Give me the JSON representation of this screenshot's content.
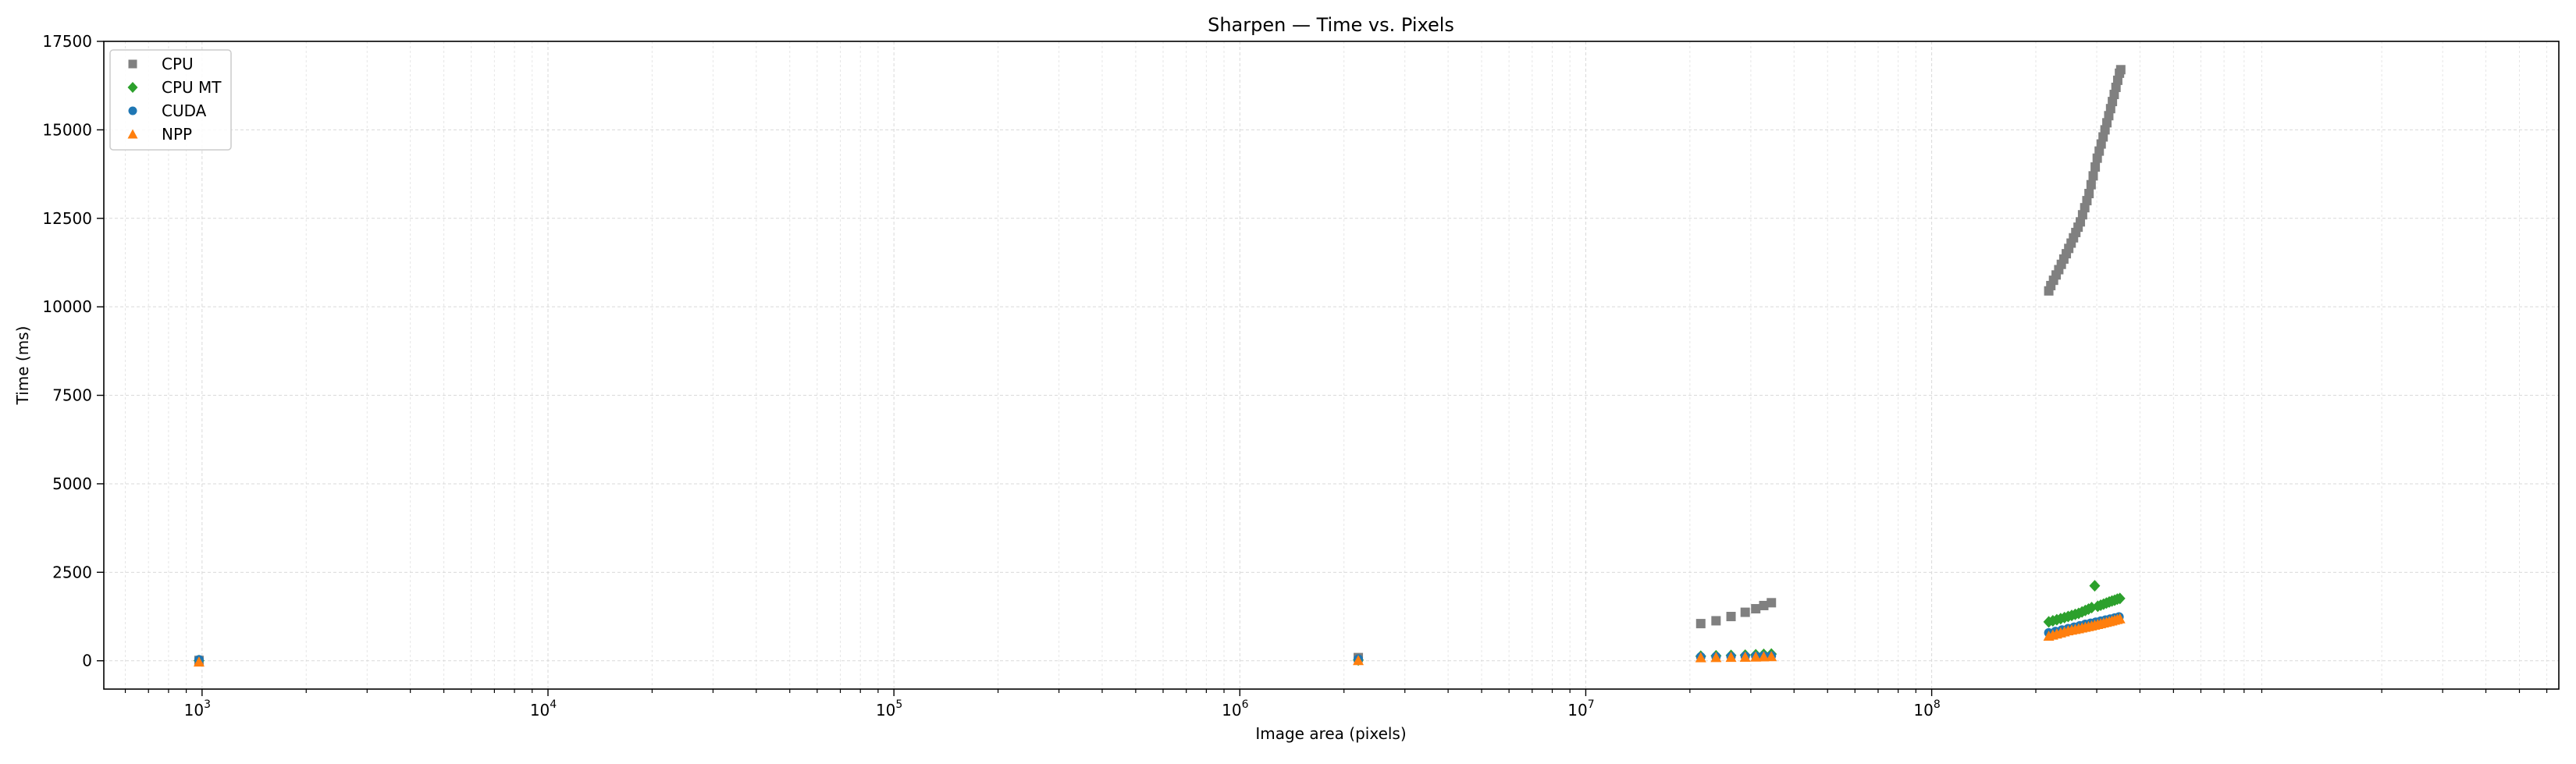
{
  "colors": {
    "CPU": "#808080",
    "CPU MT": "#2ca02c",
    "CUDA": "#1f77b4",
    "NPP": "#ff7f0e"
  },
  "chart_data": {
    "type": "scatter",
    "title": "Sharpen — Time vs. Pixels",
    "xlabel": "Image area (pixels)",
    "ylabel": "Time (ms)",
    "xscale": "log",
    "xlim": [
      520,
      6500000000
    ],
    "ylim": [
      -800,
      17500
    ],
    "grid": true,
    "legend_position": "top-left",
    "x_tick_labels": [
      {
        "base": "10",
        "exp": "3",
        "value": 1000
      },
      {
        "base": "10",
        "exp": "4",
        "value": 10000
      },
      {
        "base": "10",
        "exp": "5",
        "value": 100000
      },
      {
        "base": "10",
        "exp": "6",
        "value": 1000000
      },
      {
        "base": "10",
        "exp": "7",
        "value": 10000000
      },
      {
        "base": "10",
        "exp": "8",
        "value": 100000000
      }
    ],
    "y_tick_labels": [
      "0",
      "2500",
      "5000",
      "7500",
      "10000",
      "12500",
      "15000",
      "17500"
    ],
    "series": [
      {
        "name": "CPU",
        "marker": "square",
        "points": [
          [
            980,
            10
          ],
          [
            2200000,
            90
          ],
          [
            21500000,
            1050
          ],
          [
            23800000,
            1130
          ],
          [
            26300000,
            1250
          ],
          [
            28900000,
            1370
          ],
          [
            31000000,
            1470
          ],
          [
            32700000,
            1560
          ],
          [
            34400000,
            1640
          ],
          [
            218000000,
            10450
          ],
          [
            221000000,
            10600
          ],
          [
            225000000,
            10750
          ],
          [
            229000000,
            10900
          ],
          [
            233000000,
            11050
          ],
          [
            237000000,
            11200
          ],
          [
            241000000,
            11350
          ],
          [
            245000000,
            11500
          ],
          [
            249000000,
            11650
          ],
          [
            253000000,
            11800
          ],
          [
            257000000,
            11950
          ],
          [
            261000000,
            12100
          ],
          [
            265000000,
            12250
          ],
          [
            269000000,
            12400
          ],
          [
            273000000,
            12600
          ],
          [
            277000000,
            12800
          ],
          [
            281000000,
            13000
          ],
          [
            285000000,
            13200
          ],
          [
            289000000,
            13450
          ],
          [
            293000000,
            13700
          ],
          [
            297000000,
            13950
          ],
          [
            301000000,
            14200
          ],
          [
            305000000,
            14400
          ],
          [
            309000000,
            14600
          ],
          [
            313000000,
            14800
          ],
          [
            317000000,
            15000
          ],
          [
            321000000,
            15200
          ],
          [
            325000000,
            15400
          ],
          [
            329000000,
            15600
          ],
          [
            333000000,
            15800
          ],
          [
            337000000,
            16000
          ],
          [
            341000000,
            16200
          ],
          [
            345000000,
            16400
          ],
          [
            349000000,
            16600
          ],
          [
            352000000,
            16700
          ]
        ]
      },
      {
        "name": "CPU MT",
        "marker": "diamond",
        "points": [
          [
            980,
            5
          ],
          [
            2200000,
            20
          ],
          [
            21500000,
            130
          ],
          [
            23800000,
            140
          ],
          [
            26300000,
            150
          ],
          [
            28900000,
            160
          ],
          [
            31000000,
            170
          ],
          [
            32700000,
            180
          ],
          [
            34400000,
            190
          ],
          [
            218000000,
            1100
          ],
          [
            224000000,
            1130
          ],
          [
            230000000,
            1160
          ],
          [
            236000000,
            1190
          ],
          [
            242000000,
            1220
          ],
          [
            248000000,
            1250
          ],
          [
            254000000,
            1280
          ],
          [
            260000000,
            1310
          ],
          [
            266000000,
            1340
          ],
          [
            272000000,
            1380
          ],
          [
            278000000,
            1420
          ],
          [
            284000000,
            1460
          ],
          [
            290000000,
            1500
          ],
          [
            296000000,
            2120
          ],
          [
            302000000,
            1540
          ],
          [
            308000000,
            1570
          ],
          [
            314000000,
            1600
          ],
          [
            320000000,
            1630
          ],
          [
            326000000,
            1660
          ],
          [
            332000000,
            1690
          ],
          [
            338000000,
            1710
          ],
          [
            344000000,
            1740
          ],
          [
            350000000,
            1760
          ]
        ]
      },
      {
        "name": "CUDA",
        "marker": "circle",
        "points": [
          [
            980,
            30
          ],
          [
            2200000,
            50
          ],
          [
            21500000,
            110
          ],
          [
            23800000,
            115
          ],
          [
            26300000,
            120
          ],
          [
            28900000,
            125
          ],
          [
            31000000,
            130
          ],
          [
            32700000,
            135
          ],
          [
            34400000,
            140
          ],
          [
            218000000,
            790
          ],
          [
            228000000,
            830
          ],
          [
            238000000,
            870
          ],
          [
            248000000,
            910
          ],
          [
            258000000,
            950
          ],
          [
            268000000,
            990
          ],
          [
            278000000,
            1030
          ],
          [
            288000000,
            1060
          ],
          [
            298000000,
            1090
          ],
          [
            308000000,
            1120
          ],
          [
            318000000,
            1150
          ],
          [
            328000000,
            1180
          ],
          [
            338000000,
            1210
          ],
          [
            348000000,
            1240
          ]
        ]
      },
      {
        "name": "NPP",
        "marker": "triangle",
        "points": [
          [
            980,
            -30
          ],
          [
            2200000,
            10
          ],
          [
            21500000,
            90
          ],
          [
            23800000,
            95
          ],
          [
            26300000,
            100
          ],
          [
            28900000,
            105
          ],
          [
            31000000,
            110
          ],
          [
            32700000,
            115
          ],
          [
            34400000,
            120
          ],
          [
            218000000,
            700
          ],
          [
            224000000,
            730
          ],
          [
            230000000,
            760
          ],
          [
            236000000,
            790
          ],
          [
            242000000,
            820
          ],
          [
            248000000,
            850
          ],
          [
            254000000,
            870
          ],
          [
            260000000,
            890
          ],
          [
            266000000,
            910
          ],
          [
            272000000,
            930
          ],
          [
            278000000,
            950
          ],
          [
            284000000,
            970
          ],
          [
            290000000,
            990
          ],
          [
            296000000,
            1010
          ],
          [
            302000000,
            1030
          ],
          [
            308000000,
            1050
          ],
          [
            314000000,
            1070
          ],
          [
            320000000,
            1090
          ],
          [
            326000000,
            1110
          ],
          [
            332000000,
            1130
          ],
          [
            338000000,
            1150
          ],
          [
            344000000,
            1170
          ],
          [
            350000000,
            1190
          ]
        ]
      }
    ]
  }
}
